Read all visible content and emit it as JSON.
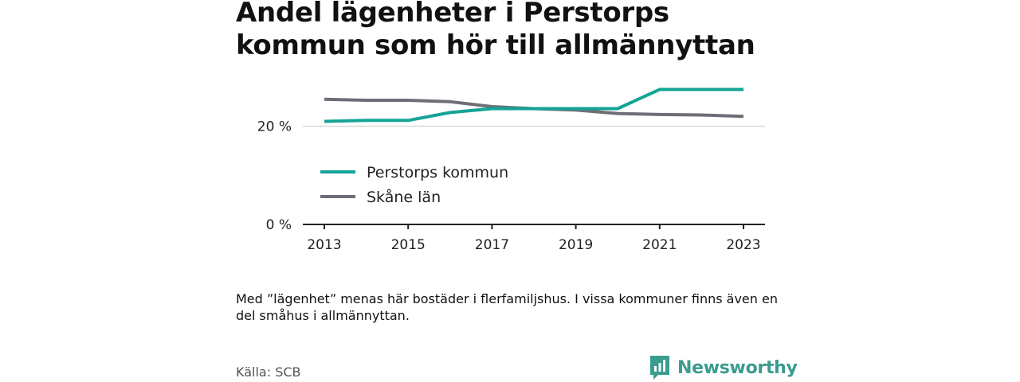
{
  "title": "Andel lägenheter i Perstorps kommun som hör till allmännyttan",
  "note": "Med ”lägenhet” menas här bostäder i flerfamiljshus. I vissa kommuner finns även en del småhus i allmännyttan.",
  "source": "Källa: SCB",
  "brand": {
    "name": "Newsworthy",
    "icon": "newsworthy-logo-icon",
    "color": "#3a9c8e"
  },
  "chart_data": {
    "type": "line",
    "title": "Andel lägenheter i Perstorps kommun som hör till allmännyttan",
    "xlabel": "",
    "ylabel": "",
    "x": [
      2013,
      2014,
      2015,
      2016,
      2017,
      2018,
      2019,
      2020,
      2021,
      2022,
      2023
    ],
    "x_tick_labels": [
      "2013",
      "2015",
      "2017",
      "2019",
      "2021",
      "2023"
    ],
    "x_tick_values": [
      2013,
      2015,
      2017,
      2019,
      2021,
      2023
    ],
    "y_tick_labels": [
      "0 %",
      "20 %"
    ],
    "y_tick_values": [
      0,
      20
    ],
    "xlim": [
      2013,
      2023
    ],
    "ylim": [
      0,
      30
    ],
    "grid": "horizontal at y-ticks",
    "legend_position": "inside left, below 20 % gridline",
    "series": [
      {
        "name": "Perstorps kommun",
        "color": "#14a497",
        "values": [
          21.0,
          21.2,
          21.2,
          22.8,
          23.6,
          23.6,
          23.6,
          23.6,
          27.5,
          27.5,
          27.5
        ]
      },
      {
        "name": "Skåne län",
        "color": "#6e6e76",
        "values": [
          25.5,
          25.3,
          25.3,
          25.0,
          24.0,
          23.6,
          23.3,
          22.6,
          22.4,
          22.3,
          22.0
        ]
      }
    ]
  }
}
